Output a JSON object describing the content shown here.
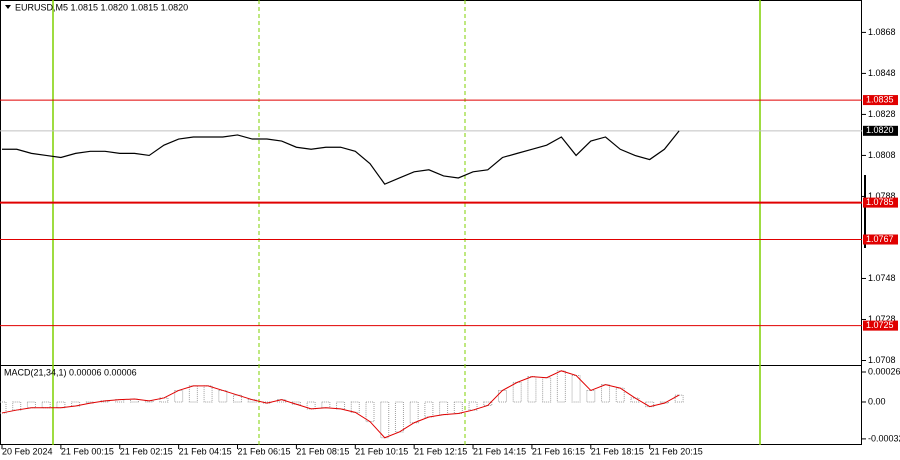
{
  "chart_data": [
    {
      "type": "line",
      "title": "EURUSD,M5  1.0815 1.0820 1.0815 1.0820",
      "color": "#000000",
      "categories": [
        "20 Feb 2024",
        null,
        null,
        null,
        "21 Feb 00:15",
        null,
        null,
        null,
        "21 Feb 02:15",
        null,
        null,
        null,
        "21 Feb 04:15",
        null,
        null,
        null,
        "21 Feb 06:15",
        null,
        null,
        null,
        "21 Feb 08:15",
        null,
        null,
        null,
        "21 Feb 10:15",
        null,
        null,
        null,
        "21 Feb 12:15",
        null,
        null,
        null,
        "21 Feb 14:15",
        null,
        null,
        null,
        "21 Feb 16:15",
        null,
        null,
        null,
        "21 Feb 18:15",
        null,
        null,
        null,
        "21 Feb 20:15",
        null,
        null
      ],
      "values": [
        1.0811,
        1.0811,
        1.0809,
        1.0808,
        1.0807,
        1.0809,
        1.081,
        1.081,
        1.0809,
        1.0809,
        1.0808,
        1.0813,
        1.0816,
        1.0817,
        1.0817,
        1.0817,
        1.0818,
        1.0816,
        1.0816,
        1.0815,
        1.0812,
        1.0811,
        1.0812,
        1.0812,
        1.081,
        1.0804,
        1.0794,
        1.0797,
        1.08,
        1.0801,
        1.0798,
        1.0797,
        1.08,
        1.0801,
        1.0807,
        1.0809,
        1.0811,
        1.0813,
        1.0817,
        1.0808,
        1.0815,
        1.0817,
        1.0811,
        1.0808,
        1.0806,
        1.0811,
        1.082
      ],
      "ylim": [
        1.07058,
        1.08838
      ],
      "yticks": [
        1.0868,
        1.0848,
        1.0828,
        1.0808,
        1.0788,
        1.0748,
        1.0728,
        1.0708
      ],
      "levels": [
        1.0835,
        1.0785,
        1.0767,
        1.0725
      ],
      "level_color": "#e00000",
      "last_price": {
        "value": 1.082,
        "label": "1.0820"
      }
    },
    {
      "type": "macd",
      "title": "MACD(21,34,1) 0.00006 0.00006",
      "color": "#a0a0a0",
      "signal_color": "#e00000",
      "values": [
        -9.5e-05,
        -7e-05,
        -5e-05,
        -5e-05,
        -5e-05,
        -3.5e-05,
        -1e-05,
        1e-05,
        2e-05,
        2.6e-05,
        1e-05,
        3.5e-05,
        0.0001,
        0.00014,
        0.00014,
        0.0001,
        6e-05,
        2e-05,
        -1e-05,
        2e-05,
        -2e-05,
        -6e-05,
        -5e-05,
        -6e-05,
        -9e-05,
        -0.00017,
        -0.00031,
        -0.00026,
        -0.00018,
        -0.00013,
        -0.00011,
        -0.0001,
        -7e-05,
        -3e-05,
        0.0001,
        0.00017,
        0.00022,
        0.00021,
        0.00027,
        0.00023,
        0.0001,
        0.00015,
        0.00012,
        3.5e-05,
        -4e-05,
        -1e-05,
        6e-05
      ],
      "signal": [
        -9.5e-05,
        -7e-05,
        -5e-05,
        -5e-05,
        -5e-05,
        -3.5e-05,
        -1e-05,
        1e-05,
        2e-05,
        2.6e-05,
        1e-05,
        3.5e-05,
        0.0001,
        0.00014,
        0.00014,
        0.0001,
        6e-05,
        2e-05,
        -1e-05,
        2e-05,
        -2e-05,
        -6e-05,
        -5e-05,
        -6e-05,
        -9e-05,
        -0.00017,
        -0.00031,
        -0.00026,
        -0.00018,
        -0.00013,
        -0.00011,
        -0.0001,
        -7e-05,
        -3e-05,
        0.0001,
        0.00017,
        0.00022,
        0.00021,
        0.00027,
        0.00023,
        0.0001,
        0.00015,
        0.00012,
        3.5e-05,
        -4e-05,
        -1e-05,
        6e-05
      ],
      "ylim": [
        -0.000373,
        0.000312
      ],
      "yticks": [
        0.00026,
        {
          "value": 0,
          "label": "0.00"
        },
        -0.00032
      ]
    }
  ]
}
